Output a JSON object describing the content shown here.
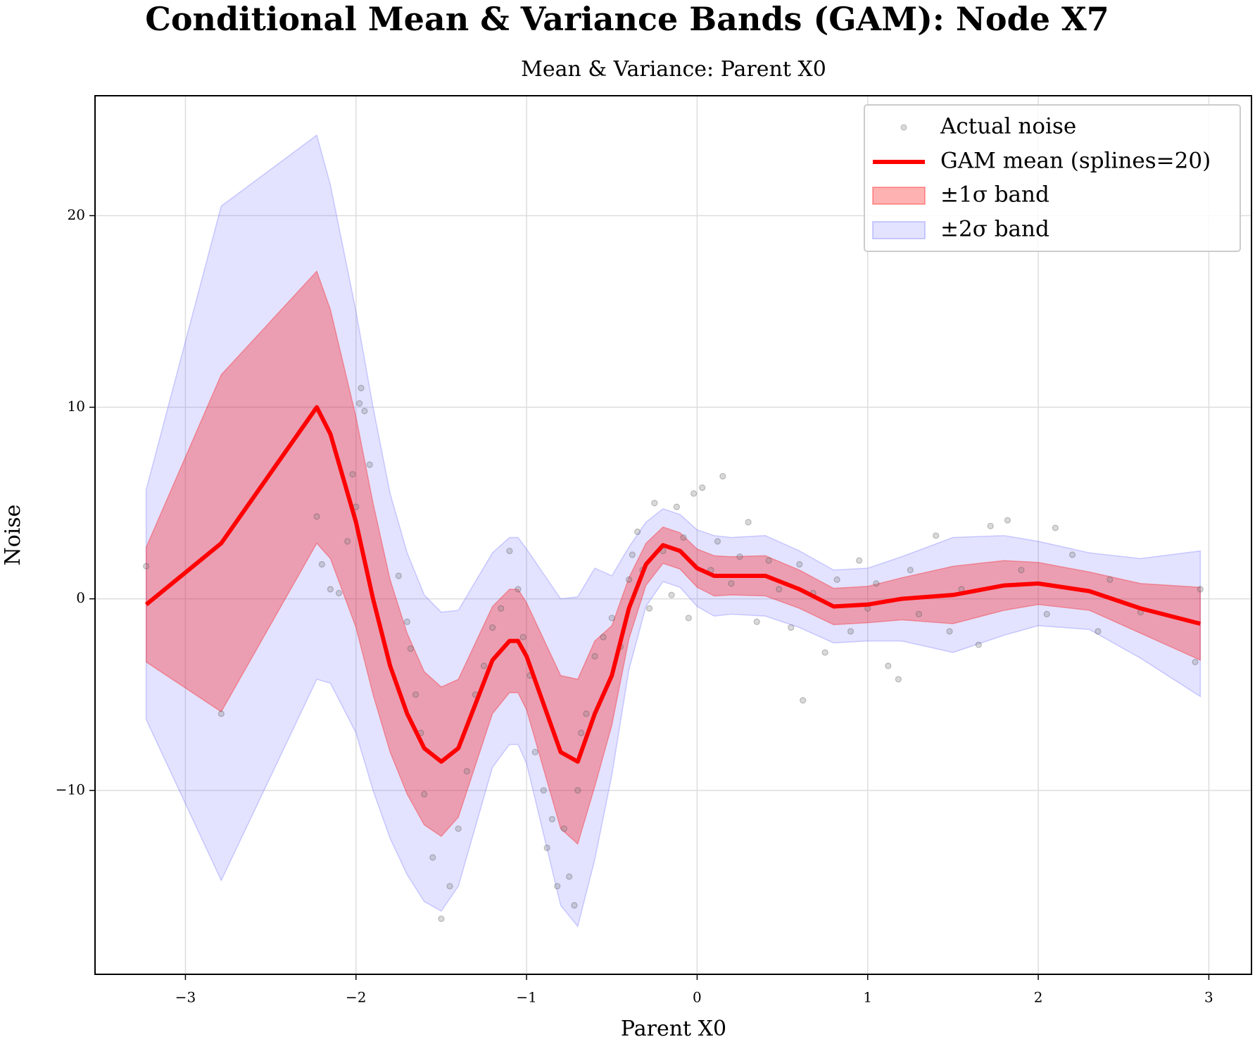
{
  "chart_data": {
    "type": "line",
    "title": "Conditional Mean & Variance Bands (GAM): Node X7",
    "subtitle": "Mean & Variance: Parent X0",
    "xlabel": "Parent X0",
    "ylabel": "Noise",
    "x": [
      -3.23,
      -2.79,
      -2.23,
      -2.15,
      -2.0,
      -1.9,
      -1.8,
      -1.7,
      -1.6,
      -1.5,
      -1.4,
      -1.3,
      -1.2,
      -1.1,
      -1.05,
      -1.0,
      -0.9,
      -0.8,
      -0.7,
      -0.6,
      -0.5,
      -0.4,
      -0.3,
      -0.2,
      -0.1,
      0.0,
      0.1,
      0.2,
      0.4,
      0.6,
      0.8,
      1.0,
      1.2,
      1.5,
      1.8,
      2.0,
      2.3,
      2.6,
      2.95
    ],
    "series": [
      {
        "name": "GAM mean (splines=20)",
        "color": "#ff0000",
        "values": [
          -0.3,
          2.9,
          10,
          8.6,
          4,
          0,
          -3.5,
          -6,
          -7.8,
          -8.5,
          -7.8,
          -5.5,
          -3.2,
          -2.2,
          -2.2,
          -3,
          -5.5,
          -8,
          -8.5,
          -6,
          -4,
          -0.5,
          1.8,
          2.8,
          2.5,
          1.6,
          1.2,
          1.2,
          1.2,
          0.5,
          -0.4,
          -0.3,
          0,
          0.2,
          0.7,
          0.8,
          0.4,
          -0.5,
          -1.3
        ]
      }
    ],
    "bands": [
      {
        "name": "±2σ band",
        "color": "#6666ff",
        "upper": [
          5.7,
          20.5,
          24.2,
          21.6,
          15,
          10,
          5.5,
          2.4,
          0.2,
          -0.7,
          -0.6,
          0.9,
          2.4,
          3.2,
          3.2,
          2.6,
          1.3,
          0,
          0.1,
          1.6,
          1.2,
          2.7,
          4,
          4.7,
          4.4,
          3.6,
          3.3,
          3.2,
          3.3,
          2.5,
          1.5,
          1.6,
          2.2,
          3.2,
          3.3,
          3,
          2.4,
          2.1,
          2.5
        ],
        "lower": [
          -6.3,
          -14.7,
          -4.2,
          -4.4,
          -7,
          -10,
          -12.5,
          -14.4,
          -15.8,
          -16.3,
          -15,
          -11.9,
          -8.8,
          -7.6,
          -7.6,
          -8.6,
          -12.3,
          -16,
          -17.1,
          -13.6,
          -9.2,
          -3.7,
          -0.4,
          0.9,
          0.6,
          -0.4,
          -0.9,
          -0.8,
          -0.9,
          -1.5,
          -2.3,
          -2.2,
          -2.2,
          -2.8,
          -1.9,
          -1.4,
          -1.6,
          -3.1,
          -5.1
        ]
      },
      {
        "name": "±1σ band",
        "color": "#ff0000",
        "upper": [
          2.7,
          11.7,
          17.1,
          15.1,
          9.5,
          5,
          1,
          -1.8,
          -3.8,
          -4.6,
          -4.2,
          -2.3,
          -0.4,
          0.5,
          0.5,
          -0.2,
          -2.1,
          -4,
          -4.2,
          -2.2,
          -1.4,
          1.1,
          2.9,
          3.75,
          3.45,
          2.6,
          2.25,
          2.2,
          2.25,
          1.5,
          0.55,
          0.65,
          1.1,
          1.7,
          2,
          1.9,
          1.4,
          0.8,
          0.6
        ],
        "lower": [
          -3.3,
          -5.9,
          2.9,
          2.1,
          -1.5,
          -5,
          -8,
          -10.2,
          -11.8,
          -12.4,
          -11.4,
          -8.7,
          -6,
          -4.9,
          -4.9,
          -5.8,
          -8.9,
          -12,
          -12.8,
          -9.8,
          -6.6,
          -2.1,
          0.7,
          1.85,
          1.55,
          0.6,
          0.15,
          0.2,
          0.15,
          -0.5,
          -1.35,
          -1.25,
          -1.1,
          -1.3,
          -0.6,
          -0.3,
          -0.6,
          -1.8,
          -3.2
        ]
      }
    ],
    "points": {
      "name": "Actual noise",
      "color": "#808080",
      "x": [
        -3.23,
        -2.79,
        -2.23,
        -2.2,
        -2.15,
        -2.1,
        -2.05,
        -2.0,
        -1.98,
        -1.97,
        -1.95,
        -1.92,
        -2.02,
        -1.75,
        -1.7,
        -1.68,
        -1.65,
        -1.62,
        -1.6,
        -1.55,
        -1.5,
        -1.45,
        -1.4,
        -1.35,
        -1.3,
        -1.25,
        -1.2,
        -1.15,
        -1.1,
        -1.05,
        -1.02,
        -0.98,
        -0.95,
        -0.9,
        -0.88,
        -0.85,
        -0.82,
        -0.78,
        -0.75,
        -0.72,
        -0.7,
        -0.68,
        -0.65,
        -0.6,
        -0.55,
        -0.5,
        -0.45,
        -0.4,
        -0.38,
        -0.35,
        -0.32,
        -0.28,
        -0.25,
        -0.2,
        -0.15,
        -0.12,
        -0.08,
        -0.05,
        -0.02,
        0.03,
        0.08,
        0.12,
        0.15,
        0.2,
        0.25,
        0.3,
        0.35,
        0.42,
        0.48,
        0.55,
        0.6,
        0.62,
        0.68,
        0.75,
        0.82,
        0.9,
        0.95,
        1.0,
        1.05,
        1.12,
        1.18,
        1.25,
        1.3,
        1.4,
        1.48,
        1.55,
        1.65,
        1.72,
        1.82,
        1.9,
        2.05,
        2.1,
        2.2,
        2.35,
        2.42,
        2.6,
        2.92,
        2.95
      ],
      "y": [
        1.7,
        -6,
        4.3,
        1.8,
        0.5,
        0.3,
        3,
        4.8,
        10.2,
        11,
        9.8,
        7,
        6.5,
        1.2,
        -1.2,
        -2.6,
        -5,
        -7,
        -10.2,
        -13.5,
        -16.7,
        -15,
        -12,
        -9,
        -5,
        -3.5,
        -1.5,
        -0.5,
        2.5,
        0.5,
        -2,
        -4,
        -8,
        -10,
        -13,
        -11.5,
        -15,
        -12,
        -14.5,
        -16,
        -10,
        -7,
        -6,
        -3,
        -2,
        -1,
        -2.5,
        1,
        2.3,
        3.5,
        1.5,
        -0.5,
        5,
        2.5,
        0.2,
        4.8,
        3.2,
        -1,
        5.5,
        5.8,
        1.5,
        3,
        6.4,
        0.8,
        2.2,
        4,
        -1.2,
        2,
        0.5,
        -1.5,
        1.8,
        -5.3,
        0.3,
        -2.8,
        1,
        -1.7,
        2,
        -0.5,
        0.8,
        -3.5,
        -4.2,
        1.5,
        -0.8,
        3.3,
        -1.7,
        0.5,
        -2.4,
        3.8,
        4.1,
        1.5,
        -0.8,
        3.7,
        2.3,
        -1.7,
        1,
        -0.7,
        -3.3,
        0.5
      ]
    },
    "xlim": [
      -3.53,
      3.25
    ],
    "ylim": [
      -19.6,
      26.26
    ],
    "xticks": [
      {
        "value": -3,
        "label": "−3"
      },
      {
        "value": -2,
        "label": "−2"
      },
      {
        "value": -1,
        "label": "−1"
      },
      0,
      1,
      2,
      3
    ],
    "yticks": [
      {
        "value": -10,
        "label": "−10"
      },
      0,
      10,
      20
    ],
    "grid": true,
    "legend": "upper right"
  }
}
